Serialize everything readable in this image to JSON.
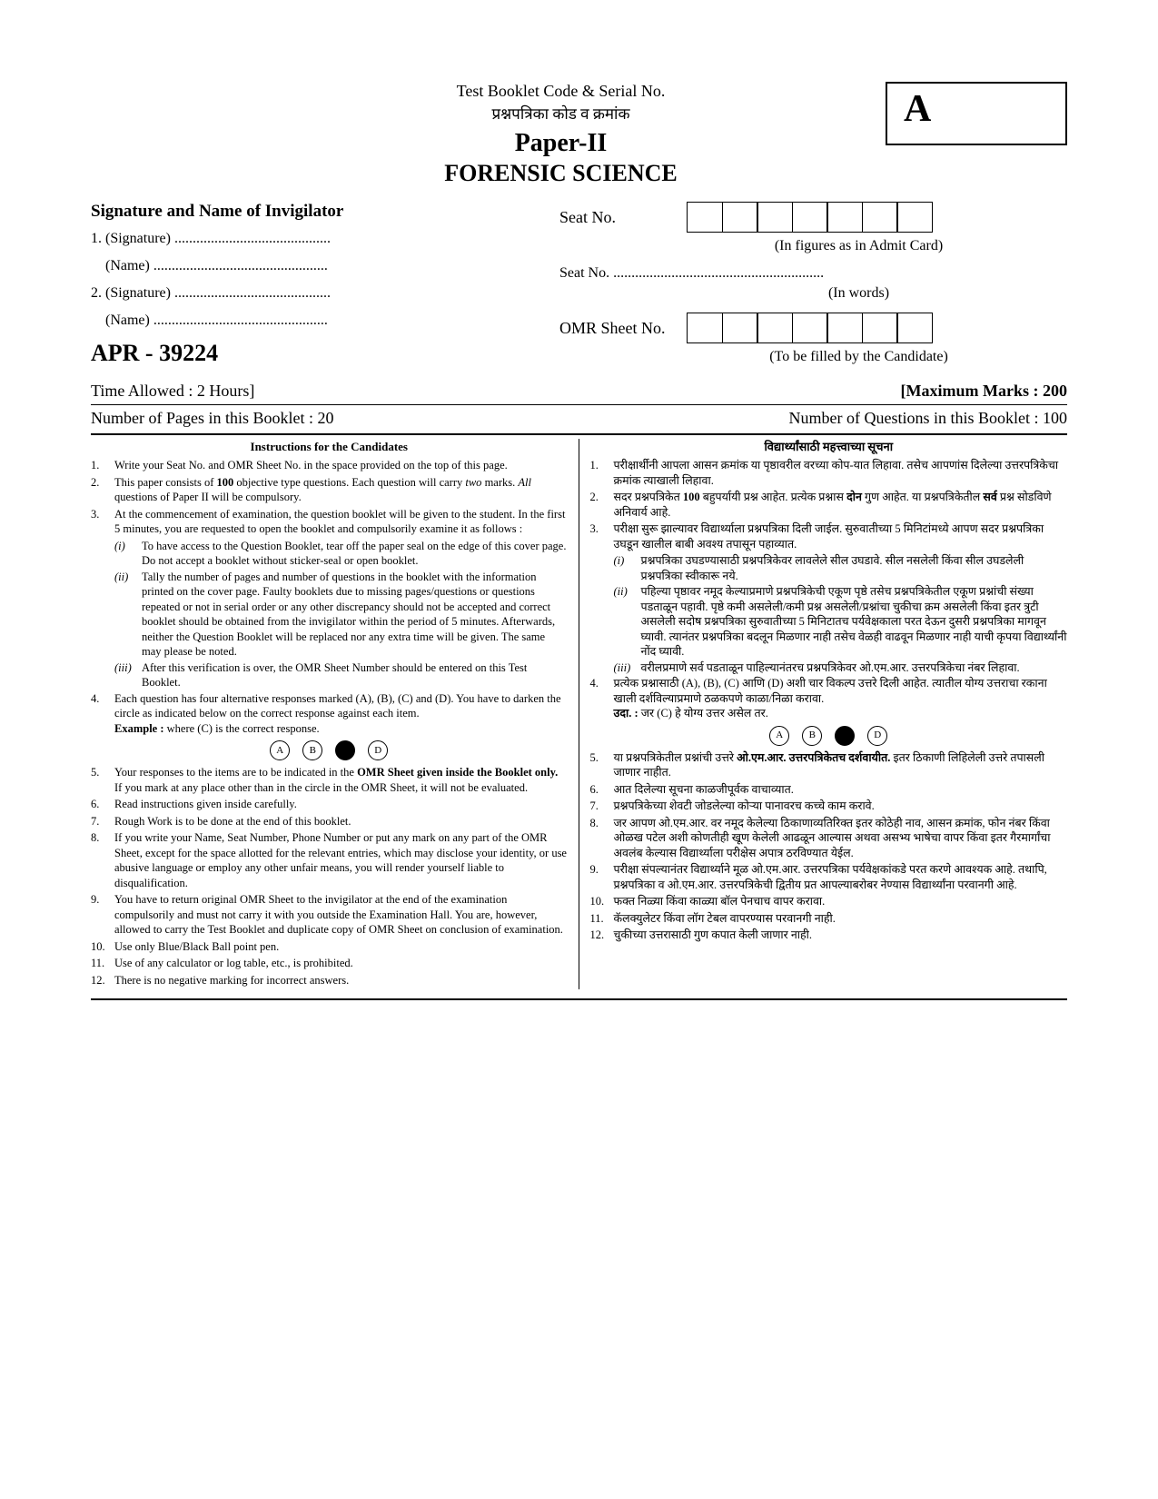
{
  "header": {
    "line1": "Test Booklet Code & Serial No.",
    "line2": "प्रश्नपत्रिका कोड व क्रमांक",
    "paper": "Paper-II",
    "subject": "FORENSIC SCIENCE",
    "code_letter": "A"
  },
  "left": {
    "sig_title": "Signature and Name of Invigilator",
    "sig1": "1. (Signature) ...........................................",
    "name1": "    (Name) ................................................",
    "sig2": "2. (Signature) ...........................................",
    "name2": "    (Name) ................................................",
    "paper_code": "APR - 39224"
  },
  "right": {
    "seat_label": "Seat No.",
    "sub1": "(In figures as in Admit Card)",
    "seat_dotted": "Seat No. ..........................................................",
    "sub2": "(In words)",
    "omr_label": "OMR Sheet No.",
    "sub3": "(To be filled by the Candidate)"
  },
  "time_row": {
    "left": "Time Allowed : 2 Hours]",
    "right": "[Maximum Marks : 200"
  },
  "pages_row": {
    "left": "Number of Pages in this Booklet : 20",
    "right": "Number of Questions in this Booklet : 100"
  },
  "inst_en": {
    "title": "Instructions for the Candidates",
    "items": [
      {
        "n": "1.",
        "t": "Write your Seat No. and OMR Sheet No. in the space provided on the top of this page."
      },
      {
        "n": "2.",
        "t": "This paper consists of <b>100</b> objective type questions. Each question will carry <i>two</i> marks. <i>All</i> questions of Paper II will be compulsory."
      },
      {
        "n": "3.",
        "t": "At the commencement of examination, the question booklet will be given to the student. In the first 5 minutes, you are requested to open the booklet and compulsorily examine it as follows :"
      },
      {
        "n": "4.",
        "t": "Each question has four alternative responses marked (A), (B), (C) and (D). You have to darken the circle as indicated below on the correct response against each item.<br><b>Example :</b> where (C) is the correct response."
      },
      {
        "n": "5.",
        "t": "Your responses to the items are to be indicated in the <b>OMR Sheet given inside the Booklet only.</b> If you mark at any place other than in the circle in the OMR Sheet, it will not be evaluated."
      },
      {
        "n": "6.",
        "t": "Read instructions given inside carefully."
      },
      {
        "n": "7.",
        "t": "Rough Work is to be done at the end of this booklet."
      },
      {
        "n": "8.",
        "t": "If you write your Name, Seat Number, Phone Number or put any mark on any part of the OMR Sheet, except for the space allotted for the relevant entries, which may disclose your identity, or use abusive language or employ any other unfair means, you will render yourself liable to disqualification."
      },
      {
        "n": "9.",
        "t": "You have to return original OMR Sheet to the invigilator at the end of the examination compulsorily and must not carry it with you outside the Examination Hall. You are, however, allowed to carry the Test Booklet and duplicate copy of OMR Sheet on conclusion of examination."
      },
      {
        "n": "10.",
        "t": "Use only Blue/Black Ball point pen."
      },
      {
        "n": "11.",
        "t": "Use of any calculator or log table, etc., is prohibited."
      },
      {
        "n": "12.",
        "t": "There is no negative marking for incorrect answers."
      }
    ],
    "sub3": [
      {
        "n": "(i)",
        "t": "To have access to the Question Booklet, tear off the paper seal on the edge of this cover page. Do not accept a booklet without sticker-seal or open booklet."
      },
      {
        "n": "(ii)",
        "t": "Tally the number of pages and number of questions in the booklet with the information printed on the cover page. Faulty booklets due to missing pages/questions or questions repeated or not in serial order or any other discrepancy should not be accepted and correct booklet should be obtained from the invigilator within the period of 5 minutes. Afterwards, neither the Question Booklet will be replaced nor any extra time will be given. The same may please be noted."
      },
      {
        "n": "(iii)",
        "t": "After this verification is over, the OMR Sheet Number should be entered on this Test Booklet."
      }
    ]
  },
  "inst_mr": {
    "title": "विद्यार्थ्यांसाठी महत्त्वाच्या सूचना",
    "items": [
      {
        "n": "1.",
        "t": "परीक्षार्थीनी आपला आसन क्रमांक या पृष्ठावरील वरच्या कोप-यात लिहावा. तसेच आपणांस दिलेल्या उत्तरपत्रिकेचा क्रमांक त्याखाली लिहावा."
      },
      {
        "n": "2.",
        "t": "सदर प्रश्नपत्रिकेत <b>100</b> बहुपर्यायी प्रश्न आहेत. प्रत्येक प्रश्नास <b>दोन</b> गुण आहेत. या प्रश्नपत्रिकेतील <b>सर्व</b> प्रश्न सोडविणे अनिवार्य आहे."
      },
      {
        "n": "3.",
        "t": "परीक्षा सुरू झाल्यावर विद्यार्थ्याला प्रश्नपत्रिका दिली जाईल. सुरुवातीच्या 5 मिनिटांमध्ये आपण सदर प्रश्नपत्रिका उघडून खालील बाबी अवश्य तपासून पहाव्यात."
      },
      {
        "n": "4.",
        "t": "प्रत्येक प्रश्नासाठी (A), (B), (C) आणि (D) अशी चार विकल्प उत्तरे दिली आहेत. त्यातील योग्य उत्तराचा रकाना खाली दर्शविल्याप्रमाणे ठळकपणे काळा/निळा करावा.<br><b>उदा. :</b> जर (C) हे योग्य उत्तर असेल तर."
      },
      {
        "n": "5.",
        "t": "या प्रश्नपत्रिकेतील प्रश्नांची उत्तरे <b>ओ.एम.आर. उत्तरपत्रिकेतच दर्शवायीत.</b> इतर ठिकाणी लिहिलेली उत्तरे तपासली जाणार नाहीत."
      },
      {
        "n": "6.",
        "t": "आत दिलेल्या सूचना काळजीपूर्वक वाचाव्यात."
      },
      {
        "n": "7.",
        "t": "प्रश्नपत्रिकेच्या शेवटी जोडलेल्या कोऱ्या पानावरच कच्चे काम करावे."
      },
      {
        "n": "8.",
        "t": "जर आपण ओ.एम.आर. वर नमूद केलेल्या ठिकाणाव्यतिरिक्त इतर कोठेही नाव, आसन क्रमांक, फोन नंबर किंवा ओळख पटेल अशी कोणतीही खूण केलेली आढळून आल्यास अथवा असभ्य भाषेचा वापर किंवा इतर गैरमार्गांचा अवलंब केल्यास विद्यार्थ्याला परीक्षेस अपात्र ठरविण्यात येईल."
      },
      {
        "n": "9.",
        "t": "परीक्षा संपल्यानंतर विद्यार्थ्याने मूळ ओ.एम.आर. उत्तरपत्रिका पर्यवेक्षकांकडे परत करणे आवश्यक आहे. तथापि, प्रश्नपत्रिका व ओ.एम.आर. उत्तरपत्रिकेची द्वितीय प्रत आपल्याबरोबर नेण्यास विद्यार्थ्यांना परवानगी आहे."
      },
      {
        "n": "10.",
        "t": "फक्त निळ्या किंवा काळ्या बॉल पेनचाच वापर करावा."
      },
      {
        "n": "11.",
        "t": "कॅलक्युलेटर किंवा लॉग टेबल वापरण्यास परवानगी नाही."
      },
      {
        "n": "12.",
        "t": "चुकीच्या उत्तरासाठी गुण कपात केली जाणार नाही."
      }
    ],
    "sub3": [
      {
        "n": "(i)",
        "t": "प्रश्नपत्रिका उघडण्यासाठी प्रश्नपत्रिकेवर लावलेले सील उघडावे. सील नसलेली किंवा सील उघडलेली प्रश्नपत्रिका स्वीकारू नये."
      },
      {
        "n": "(ii)",
        "t": "पहिल्या पृष्ठावर नमूद केल्याप्रमाणे प्रश्नपत्रिकेची एकूण पृष्ठे तसेच प्रश्नपत्रिकेतील एकूण प्रश्नांची संख्या पडताळून पहावी. पृष्ठे कमी असलेली/कमी प्रश्न असलेली/प्रश्नांचा चुकीचा क्रम असलेली किंवा इतर त्रुटी असलेली सदोष प्रश्नपत्रिका सुरुवातीच्या 5 मिनिटातच पर्यवेक्षकाला परत देऊन दुसरी प्रश्नपत्रिका मागवून घ्यावी. त्यानंतर प्रश्नपत्रिका बदलून मिळणार नाही तसेच वेळही वाढवून मिळणार नाही याची कृपया विद्यार्थ्यांनी नोंद घ्यावी."
      },
      {
        "n": "(iii)",
        "t": "वरीलप्रमाणे सर्व पडताळून पाहिल्यानंतरच प्रश्नपत्रिकेवर ओ.एम.आर. उत्तरपत्रिकेचा नंबर लिहावा."
      }
    ]
  },
  "circles": [
    "A",
    "B",
    "",
    "D"
  ]
}
